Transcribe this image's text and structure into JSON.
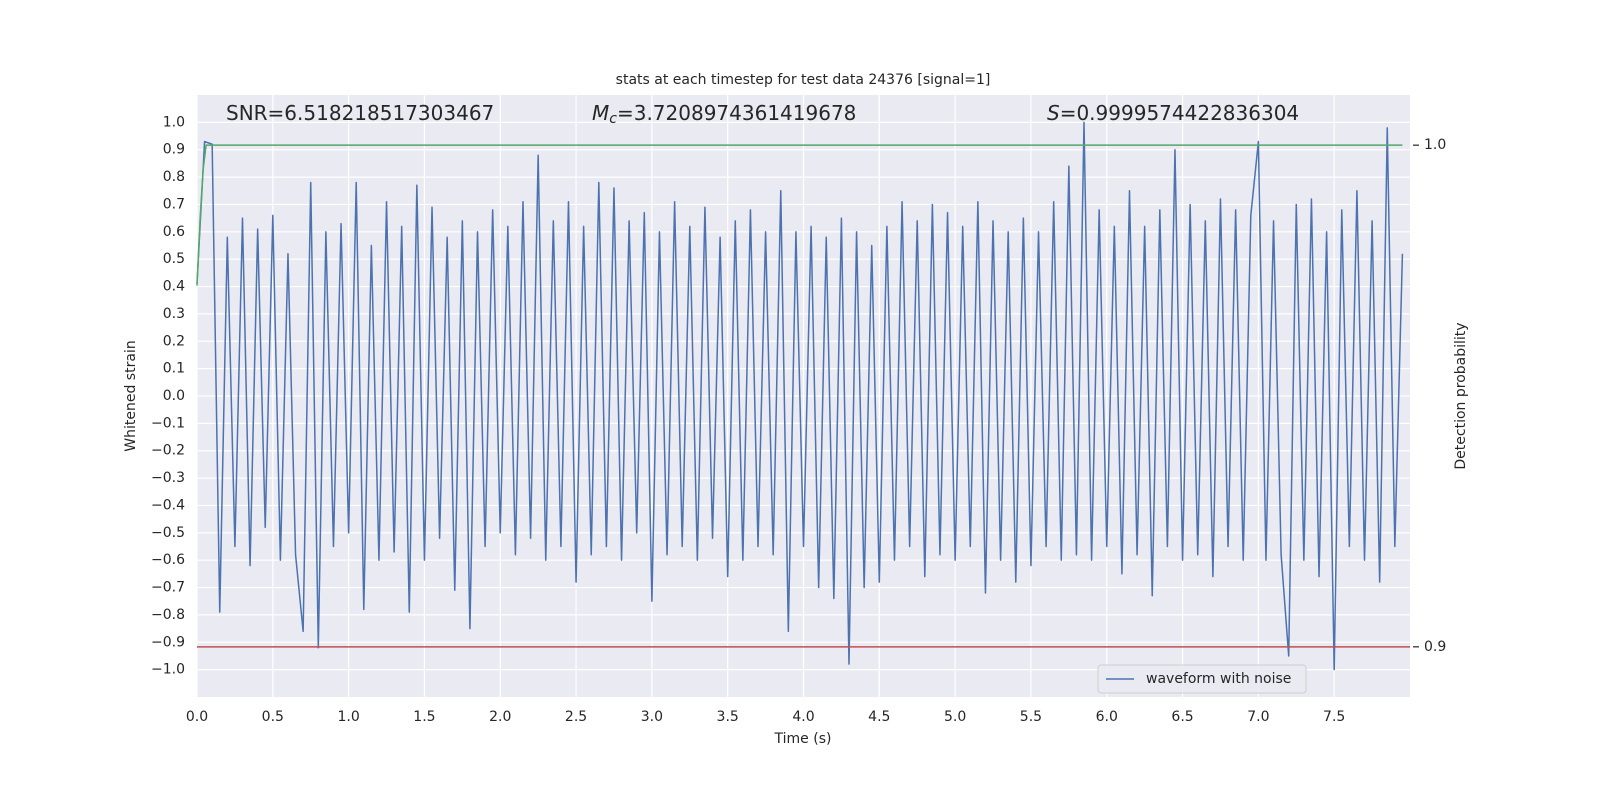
{
  "chart_data": {
    "type": "line",
    "title": "stats at each timestep for test data 24376 [signal=1]",
    "x_label": "Time (s)",
    "y_label": "Whitened strain",
    "y2_label": "Detection probability",
    "annotations": [
      {
        "text": "SNR=6.518218517303467"
      },
      {
        "symbol": "M",
        "subscript": "c",
        "text": "=3.7208974361419678"
      },
      {
        "symbol": "S",
        "text": "=0.9999574422836304"
      }
    ],
    "xlim": [
      0,
      8.0
    ],
    "xticks": [
      {
        "value": 0,
        "label": "0.0"
      },
      0.5,
      {
        "value": 1,
        "label": "1.0"
      },
      1.5,
      {
        "value": 2,
        "label": "2.0"
      },
      2.5,
      {
        "value": 3,
        "label": "3.0"
      },
      3.5,
      {
        "value": 4,
        "label": "4.0"
      },
      4.5,
      {
        "value": 5,
        "label": "5.0"
      },
      5.5,
      {
        "value": 6,
        "label": "6.0"
      },
      6.5,
      {
        "value": 7,
        "label": "7.0"
      },
      7.5
    ],
    "ylim": [
      -1.1,
      1.1
    ],
    "yticks": [
      {
        "value": -1,
        "label": "−1.0"
      },
      {
        "value": -0.9,
        "label": "−0.9"
      },
      {
        "value": -0.8,
        "label": "−0.8"
      },
      {
        "value": -0.7,
        "label": "−0.7"
      },
      {
        "value": -0.6,
        "label": "−0.6"
      },
      {
        "value": -0.5,
        "label": "−0.5"
      },
      {
        "value": -0.4,
        "label": "−0.4"
      },
      {
        "value": -0.3,
        "label": "−0.3"
      },
      {
        "value": -0.2,
        "label": "−0.2"
      },
      {
        "value": -0.1,
        "label": "−0.1"
      },
      {
        "value": 0,
        "label": "0.0"
      },
      0.1,
      0.2,
      0.3,
      0.4,
      0.5,
      0.6,
      0.7,
      0.8,
      0.9,
      {
        "value": 1,
        "label": "1.0"
      }
    ],
    "y2lim": [
      0.89,
      1.01
    ],
    "y2ticks": [
      0.9,
      {
        "value": 1,
        "label": "1.0"
      }
    ],
    "grid": true,
    "legend": "lower right",
    "series": [
      {
        "name": "waveform with noise",
        "color": "#4c72b0",
        "x": [
          0,
          0.05,
          0.1,
          0.15,
          0.2,
          0.25,
          0.3,
          0.35,
          0.4,
          0.45,
          0.5,
          0.55,
          0.6,
          0.65,
          0.7,
          0.75,
          0.8,
          0.85,
          0.9,
          0.95,
          1,
          1.05,
          1.1,
          1.15,
          1.2,
          1.25,
          1.3,
          1.35,
          1.4,
          1.45,
          1.5,
          1.55,
          1.6,
          1.65,
          1.7,
          1.75,
          1.8,
          1.85,
          1.9,
          1.95,
          2,
          2.05,
          2.1,
          2.15,
          2.2,
          2.25,
          2.3,
          2.35,
          2.4,
          2.45,
          2.5,
          2.55,
          2.6,
          2.65,
          2.7,
          2.75,
          2.8,
          2.85,
          2.9,
          2.95,
          3,
          3.05,
          3.1,
          3.15,
          3.2,
          3.25,
          3.3,
          3.35,
          3.4,
          3.45,
          3.5,
          3.55,
          3.6,
          3.65,
          3.7,
          3.75,
          3.8,
          3.85,
          3.9,
          3.95,
          4,
          4.05,
          4.1,
          4.15,
          4.2,
          4.25,
          4.3,
          4.35,
          4.4,
          4.45,
          4.5,
          4.55,
          4.6,
          4.65,
          4.7,
          4.75,
          4.8,
          4.85,
          4.9,
          4.95,
          5,
          5.05,
          5.1,
          5.15,
          5.2,
          5.25,
          5.3,
          5.35,
          5.4,
          5.45,
          5.5,
          5.55,
          5.6,
          5.65,
          5.7,
          5.75,
          5.8,
          5.85,
          5.9,
          5.95,
          6,
          6.05,
          6.1,
          6.15,
          6.2,
          6.25,
          6.3,
          6.35,
          6.4,
          6.45,
          6.5,
          6.55,
          6.6,
          6.65,
          6.7,
          6.75,
          6.8,
          6.85,
          6.9,
          6.95,
          7,
          7.05,
          7.1,
          7.15,
          7.2,
          7.25,
          7.3,
          7.35,
          7.4,
          7.45,
          7.5,
          7.55,
          7.6,
          7.65,
          7.7,
          7.75,
          7.8,
          7.85,
          7.9,
          7.95
        ],
        "values": [
          0.41,
          0.93,
          0.92,
          -0.79,
          0.58,
          -0.55,
          0.65,
          -0.62,
          0.61,
          -0.48,
          0.66,
          -0.6,
          0.52,
          -0.58,
          -0.86,
          0.78,
          -0.92,
          0.6,
          -0.55,
          0.63,
          -0.5,
          0.78,
          -0.78,
          0.55,
          -0.6,
          0.71,
          -0.57,
          0.62,
          -0.79,
          0.77,
          -0.6,
          0.69,
          -0.52,
          0.58,
          -0.71,
          0.64,
          -0.85,
          0.6,
          -0.55,
          0.68,
          -0.5,
          0.62,
          -0.58,
          0.71,
          -0.52,
          0.88,
          -0.6,
          0.64,
          -0.55,
          0.71,
          -0.68,
          0.62,
          -0.58,
          0.78,
          -0.55,
          0.76,
          -0.6,
          0.64,
          -0.5,
          0.67,
          -0.75,
          0.6,
          -0.58,
          0.71,
          -0.55,
          0.62,
          -0.6,
          0.69,
          -0.52,
          0.58,
          -0.66,
          0.64,
          -0.6,
          0.68,
          -0.55,
          0.6,
          -0.58,
          0.75,
          -0.86,
          0.6,
          -0.55,
          0.62,
          -0.7,
          0.58,
          -0.74,
          0.65,
          -0.98,
          0.6,
          -0.7,
          0.55,
          -0.68,
          0.62,
          -0.6,
          0.71,
          -0.55,
          0.64,
          -0.66,
          0.7,
          -0.58,
          0.67,
          -0.6,
          0.62,
          -0.55,
          0.71,
          -0.72,
          0.64,
          -0.6,
          0.6,
          -0.68,
          0.65,
          -0.62,
          0.6,
          -0.55,
          0.71,
          -0.6,
          0.84,
          -0.58,
          1.0,
          -0.6,
          0.68,
          -0.55,
          0.62,
          -0.65,
          0.75,
          -0.58,
          0.62,
          -0.73,
          0.68,
          -0.55,
          0.9,
          -0.6,
          0.7,
          -0.58,
          0.64,
          -0.66,
          0.72,
          -0.55,
          0.68,
          -0.6,
          0.66,
          0.93,
          -0.6,
          0.64,
          -0.58,
          -0.95,
          0.7,
          -0.6,
          0.72,
          -0.66,
          0.6,
          -1.0,
          0.68,
          -0.55,
          0.75,
          -0.6,
          0.64,
          -0.68,
          0.98,
          -0.55,
          0.52
        ]
      },
      {
        "color": "#55a868",
        "axis": "y2",
        "x": [
          0,
          0.02,
          0.04,
          0.06,
          7.95
        ],
        "values": [
          0.972,
          0.985,
          0.995,
          1.0,
          1.0
        ]
      }
    ],
    "hline": {
      "value": 0.9,
      "axis": "y2",
      "color": "#c44e52"
    }
  }
}
